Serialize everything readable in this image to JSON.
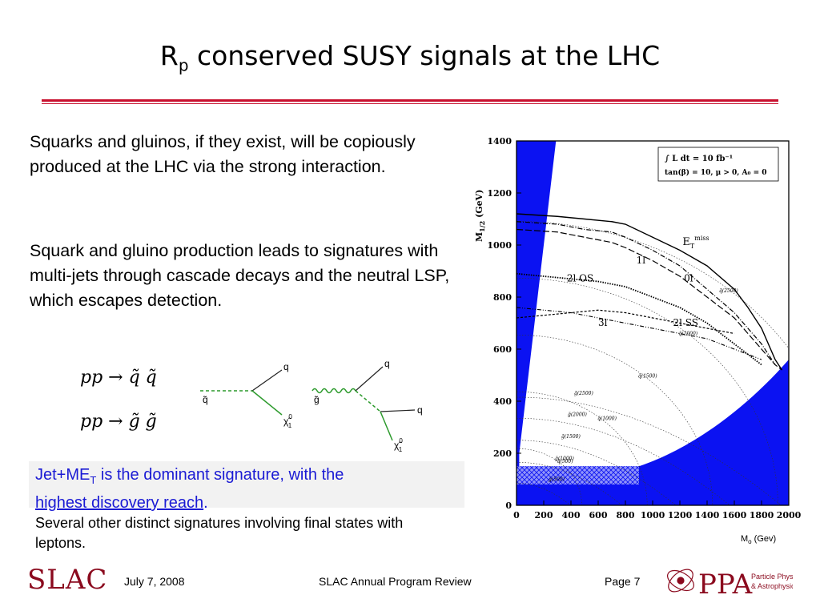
{
  "title": {
    "main": "R",
    "sub": "p",
    "rest": " conserved SUSY signals at the LHC"
  },
  "paragraph1": "Squarks and gluinos, if they exist, will be copiously produced at the LHC via the strong interaction.",
  "paragraph2": "Squark and gluino production leads to signatures with multi-jets through cascade decays and the neutral LSP, which escapes detection.",
  "diagrams": {
    "eq1": "pp → q̃ q̃",
    "eq2": "pp → g̃ g̃",
    "squark_in": "q̃",
    "squark_q": "q",
    "squark_chi": "χ̃",
    "chi_sup": "0",
    "chi_sub": "1",
    "gluino_in": "g̃",
    "gluino_q1": "q",
    "gluino_q2": "q"
  },
  "highlight": {
    "line1_a": "Jet+ME",
    "line1_sub": "T",
    "line1_b": " is the dominant signature, with the",
    "link": "highest discovery reach",
    "after_link": "."
  },
  "other_signatures": "Several other distinct signatures involving final states with leptons.",
  "chart_data": {
    "type": "line",
    "xlabel": "",
    "x_unit_label_main": "M",
    "x_unit_label_sub": "o",
    "x_unit_label_rest": " (Gev)",
    "ylabel_main": "M",
    "ylabel_sub": "1/2",
    "ylabel_unit": " (GeV)",
    "xlim": [
      0,
      2000
    ],
    "ylim": [
      0,
      1400
    ],
    "xticks": [
      "0",
      "200",
      "400",
      "600",
      "800",
      "1000",
      "1200",
      "1400",
      "1600",
      "1800",
      "2000"
    ],
    "yticks": [
      "0",
      "200",
      "400",
      "600",
      "800",
      "1000",
      "1200",
      "1400"
    ],
    "legend_line1": "∫ L dt = 10 fb⁻¹",
    "legend_line2": "tan(β) = 10, μ > 0, A₀ = 0",
    "legend_position": "top-right",
    "series": [
      {
        "name": "E_T miss",
        "label_main": "E",
        "label_sub": "T",
        "label_sup": "miss",
        "x": [
          0,
          300,
          500,
          700,
          800,
          1000,
          1200,
          1400,
          1600,
          1700,
          1800,
          1900,
          1950
        ],
        "y": [
          1120,
          1110,
          1100,
          1090,
          1080,
          1030,
          980,
          920,
          830,
          760,
          680,
          560,
          520
        ]
      },
      {
        "name": "1l",
        "label": "1l",
        "x": [
          0,
          300,
          500,
          700,
          800,
          1000,
          1200,
          1400,
          1600,
          1800,
          1900
        ],
        "y": [
          1090,
          1080,
          1060,
          1050,
          1030,
          980,
          920,
          830,
          740,
          620,
          540
        ]
      },
      {
        "name": "0l",
        "label": "0l",
        "x": [
          0,
          300,
          500,
          700,
          800,
          1000,
          1200,
          1400,
          1600,
          1800,
          1900,
          1950
        ],
        "y": [
          1060,
          1050,
          1030,
          1010,
          990,
          940,
          880,
          800,
          720,
          600,
          540,
          520
        ]
      },
      {
        "name": "2l OS",
        "label": "2l OS",
        "x": [
          0,
          200,
          400,
          600,
          800,
          1000,
          1200,
          1400,
          1600,
          1800
        ],
        "y": [
          890,
          880,
          870,
          860,
          840,
          800,
          760,
          700,
          620,
          540
        ]
      },
      {
        "name": "3l",
        "label": "3l",
        "x": [
          0,
          200,
          400,
          600,
          800,
          1000,
          1200,
          1400,
          1600
        ],
        "y": [
          720,
          730,
          740,
          750,
          740,
          720,
          700,
          680,
          660
        ]
      },
      {
        "name": "2l SS",
        "label": "2l SS",
        "x": [
          0,
          200,
          400,
          600,
          800,
          1000,
          1200,
          1400,
          1600,
          1800
        ],
        "y": [
          760,
          750,
          740,
          720,
          700,
          680,
          660,
          640,
          600,
          560
        ]
      }
    ],
    "contours": {
      "gluino": [
        {
          "label": "g̃(500)",
          "radius": 220
        },
        {
          "label": "g̃(1000)",
          "radius": 430
        },
        {
          "label": "g̃(1500)",
          "radius": 650
        },
        {
          "label": "g̃(2000)",
          "radius": 870
        },
        {
          "label": "g̃(2500)",
          "radius": 1080
        }
      ],
      "squark": [
        {
          "label": "q̃(500)",
          "radius": 480
        },
        {
          "label": "q̃(1000)",
          "radius": 960
        },
        {
          "label": "q̃(1500)",
          "radius": 1440
        },
        {
          "label": "q̃(2000)",
          "radius": 1920
        },
        {
          "label": "q̃(2500)",
          "radius": 2400
        }
      ]
    },
    "grid": false
  },
  "footer": {
    "logo": "SLAC",
    "date": "July 7, 2008",
    "center": "SLAC Annual Program Review",
    "page": "Page 7",
    "ppa_letters": "PPA",
    "ppa_line1": "Particle Physics",
    "ppa_line2": "& Astrophysics"
  },
  "colors": {
    "title_rule": "#c8102e",
    "excluded_region": "#0b12f2",
    "link_text": "#1a1ad4",
    "slac_logo": "#8b0a1e"
  }
}
